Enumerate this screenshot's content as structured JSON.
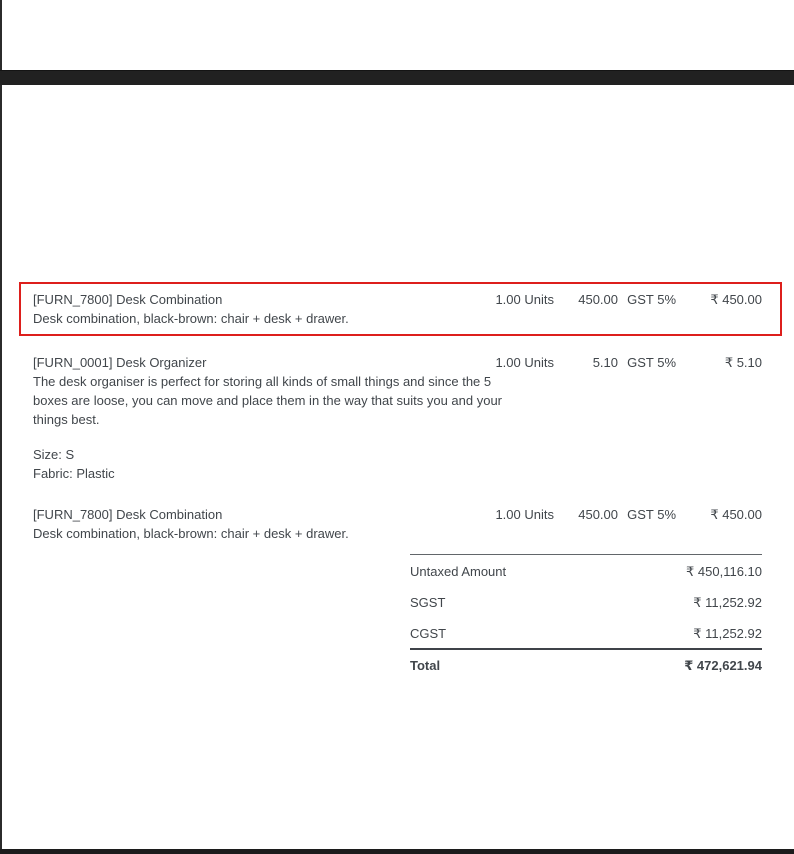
{
  "chrome": {
    "bar_color": "#212121",
    "edge_line_color": "#2b2b2b"
  },
  "annotation": {
    "highlight_border_color": "#dd1f1c",
    "highlighted_line_index": 0
  },
  "invoice_lines": [
    {
      "name": "[FURN_7800] Desk Combination",
      "description": "Desk combination, black-brown: chair + desk + drawer.",
      "quantity": "1.00 Units",
      "unit_price": "450.00",
      "taxes": "GST 5%",
      "amount": "₹ 450.00"
    },
    {
      "name": "[FURN_0001] Desk Organizer",
      "description": "The desk organiser is perfect for storing all kinds of small things and since the 5 boxes are loose, you can move and place them in the way that suits you and your things best.",
      "attributes": [
        "Size: S",
        "Fabric: Plastic"
      ],
      "quantity": "1.00 Units",
      "unit_price": "5.10",
      "taxes": "GST 5%",
      "amount": "₹ 5.10"
    },
    {
      "name": "[FURN_7800] Desk Combination",
      "description": "Desk combination, black-brown: chair + desk + drawer.",
      "quantity": "1.00 Units",
      "unit_price": "450.00",
      "taxes": "GST 5%",
      "amount": "₹ 450.00"
    }
  ],
  "totals": {
    "rows": [
      {
        "label": "Untaxed Amount",
        "value": "₹ 450,116.10"
      },
      {
        "label": "SGST",
        "value": "₹ 11,252.92"
      },
      {
        "label": "CGST",
        "value": "₹ 11,252.92"
      }
    ],
    "total": {
      "label": "Total",
      "value": "₹ 472,621.94"
    }
  }
}
